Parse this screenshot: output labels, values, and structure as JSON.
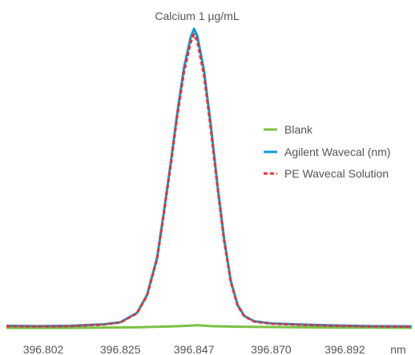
{
  "chart_data": {
    "type": "line",
    "title": "Calcium 1 µg/mL",
    "xlabel": "nm",
    "ylabel": "",
    "xlim": [
      396.791,
      396.912
    ],
    "ylim": [
      0,
      1
    ],
    "grid": false,
    "legend_position": "right",
    "x_ticks": [
      396.802,
      396.825,
      396.847,
      396.87,
      396.892
    ],
    "x_tick_labels": [
      "396.802",
      "396.825",
      "396.847",
      "396.870",
      "396.892"
    ],
    "series": [
      {
        "name": "Blank",
        "color": "#7ac143",
        "style": "solid",
        "x": [
          396.791,
          396.8,
          396.81,
          396.82,
          396.83,
          396.84,
          396.845,
          396.848,
          396.852,
          396.86,
          396.87,
          396.88,
          396.89,
          396.9,
          396.912
        ],
        "y": [
          0.005,
          0.005,
          0.005,
          0.006,
          0.007,
          0.01,
          0.012,
          0.014,
          0.011,
          0.009,
          0.008,
          0.007,
          0.006,
          0.006,
          0.005
        ]
      },
      {
        "name": "Agilent Wavecal (nm)",
        "color": "#0a9ad8",
        "style": "solid",
        "x": [
          396.791,
          396.8,
          396.81,
          396.82,
          396.825,
          396.83,
          396.833,
          396.836,
          396.838,
          396.84,
          396.842,
          396.844,
          396.846,
          396.847,
          396.848,
          396.85,
          396.852,
          396.854,
          396.856,
          396.858,
          396.86,
          396.862,
          396.865,
          396.87,
          396.88,
          396.89,
          396.9,
          396.912
        ],
        "y": [
          0.012,
          0.011,
          0.012,
          0.017,
          0.024,
          0.055,
          0.115,
          0.24,
          0.39,
          0.55,
          0.72,
          0.87,
          0.972,
          1.0,
          0.975,
          0.86,
          0.68,
          0.48,
          0.3,
          0.16,
          0.082,
          0.045,
          0.027,
          0.02,
          0.016,
          0.013,
          0.011,
          0.01
        ]
      },
      {
        "name": "PE Wavecal Solution",
        "color": "#e8322d",
        "style": "dashed",
        "x": [
          396.791,
          396.8,
          396.81,
          396.82,
          396.825,
          396.83,
          396.833,
          396.836,
          396.838,
          396.84,
          396.842,
          396.844,
          396.846,
          396.847,
          396.848,
          396.85,
          396.852,
          396.854,
          396.856,
          396.858,
          396.86,
          396.862,
          396.865,
          396.87,
          396.88,
          396.89,
          396.9,
          396.912
        ],
        "y": [
          0.011,
          0.01,
          0.011,
          0.016,
          0.023,
          0.054,
          0.113,
          0.236,
          0.385,
          0.543,
          0.71,
          0.855,
          0.955,
          0.982,
          0.958,
          0.845,
          0.668,
          0.472,
          0.295,
          0.157,
          0.08,
          0.044,
          0.026,
          0.019,
          0.015,
          0.012,
          0.01,
          0.009
        ]
      }
    ]
  }
}
